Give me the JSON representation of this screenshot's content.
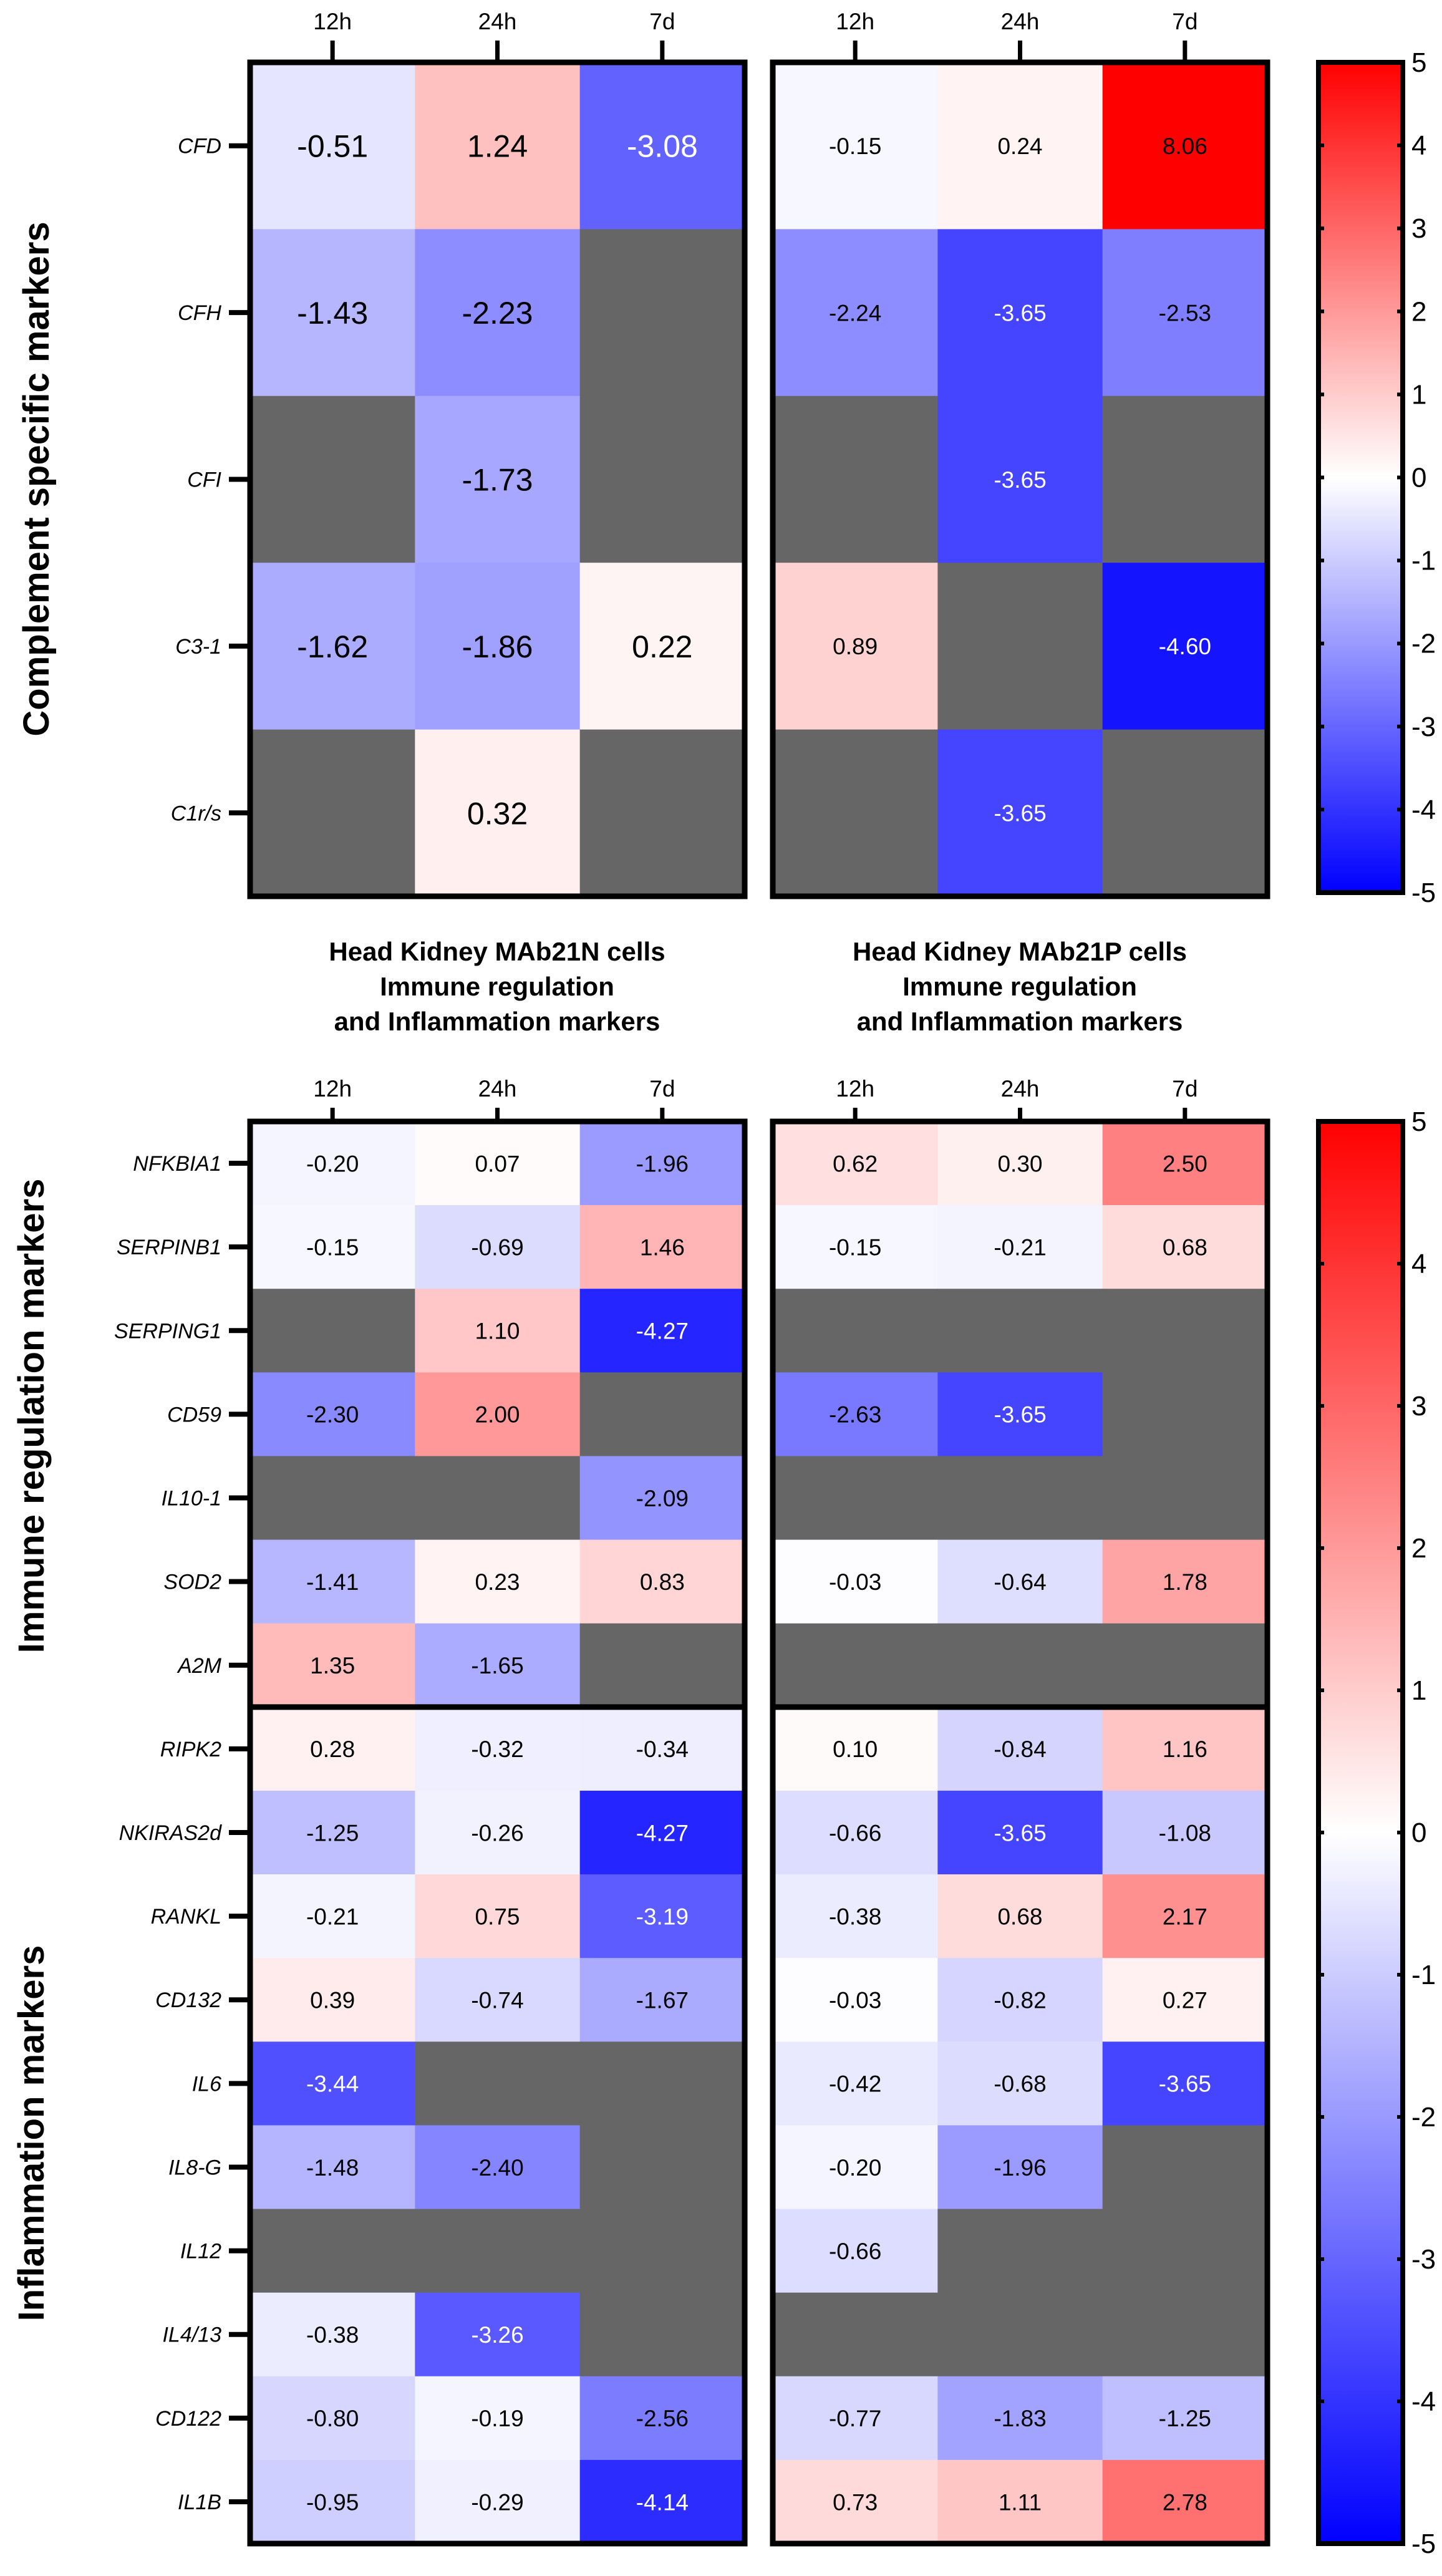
{
  "chart_data": [
    {
      "type": "heatmap",
      "panel": "complement-mab21n",
      "ylabel": "Complement specific markers",
      "columns": [
        "12h",
        "24h",
        "7d"
      ],
      "rows": [
        "CFD",
        "CFH",
        "CFI",
        "C3-1",
        "C1r/s"
      ],
      "values": [
        [
          -0.51,
          1.24,
          -3.08
        ],
        [
          -1.43,
          -2.23,
          null
        ],
        [
          null,
          -1.73,
          null
        ],
        [
          -1.62,
          -1.86,
          0.22
        ],
        [
          null,
          0.32,
          null
        ]
      ]
    },
    {
      "type": "heatmap",
      "panel": "complement-mab21p",
      "columns": [
        "12h",
        "24h",
        "7d"
      ],
      "rows": [
        "CFD",
        "CFH",
        "CFI",
        "C3-1",
        "C1r/s"
      ],
      "values": [
        [
          -0.15,
          0.24,
          8.06
        ],
        [
          -2.24,
          -3.65,
          -2.53
        ],
        [
          null,
          -3.65,
          null
        ],
        [
          0.89,
          null,
          -4.6
        ],
        [
          null,
          -3.65,
          null
        ]
      ]
    },
    {
      "type": "heatmap",
      "panel": "immune-inflammation-mab21n",
      "title": [
        "Head Kidney MAb21N cells",
        "Immune regulation",
        "and Inflammation markers"
      ],
      "group_labels": [
        "Immune regulation markers",
        "Inflammation markers"
      ],
      "columns": [
        "12h",
        "24h",
        "7d"
      ],
      "rows": [
        "NFKBIA1",
        "SERPINB1",
        "SERPING1",
        "CD59",
        "IL10-1",
        "SOD2",
        "A2M",
        "RIPK2",
        "NKIRAS2d",
        "RANKL",
        "CD132",
        "IL6",
        "IL8-G",
        "IL12",
        "IL4/13",
        "CD122",
        "IL1B"
      ],
      "values": [
        [
          -0.2,
          0.07,
          -1.96
        ],
        [
          -0.15,
          -0.69,
          1.46
        ],
        [
          null,
          1.1,
          -4.27
        ],
        [
          -2.3,
          2.0,
          null
        ],
        [
          null,
          null,
          -2.09
        ],
        [
          -1.41,
          0.23,
          0.83
        ],
        [
          1.35,
          -1.65,
          null
        ],
        [
          0.28,
          -0.32,
          -0.34
        ],
        [
          -1.25,
          -0.26,
          -4.27
        ],
        [
          -0.21,
          0.75,
          -3.19
        ],
        [
          0.39,
          -0.74,
          -1.67
        ],
        [
          -3.44,
          null,
          null
        ],
        [
          -1.48,
          -2.4,
          null
        ],
        [
          null,
          null,
          null
        ],
        [
          -0.38,
          -3.26,
          null
        ],
        [
          -0.8,
          -0.19,
          -2.56
        ],
        [
          -0.95,
          -0.29,
          -4.14
        ]
      ]
    },
    {
      "type": "heatmap",
      "panel": "immune-inflammation-mab21p",
      "title": [
        "Head Kidney MAb21P cells",
        "Immune regulation",
        "and Inflammation markers"
      ],
      "columns": [
        "12h",
        "24h",
        "7d"
      ],
      "rows": [
        "NFKBIA1",
        "SERPINB1",
        "SERPING1",
        "CD59",
        "IL10-1",
        "SOD2",
        "A2M",
        "RIPK2",
        "NKIRAS2d",
        "RANKL",
        "CD132",
        "IL6",
        "IL8-G",
        "IL12",
        "IL4/13",
        "CD122",
        "IL1B"
      ],
      "values": [
        [
          0.62,
          0.3,
          2.5
        ],
        [
          -0.15,
          -0.21,
          0.68
        ],
        [
          null,
          null,
          null
        ],
        [
          -2.63,
          -3.65,
          null
        ],
        [
          null,
          null,
          null
        ],
        [
          -0.03,
          -0.64,
          1.78
        ],
        [
          null,
          null,
          null
        ],
        [
          0.1,
          -0.84,
          1.16
        ],
        [
          -0.66,
          -3.65,
          -1.08
        ],
        [
          -0.38,
          0.68,
          2.17
        ],
        [
          -0.03,
          -0.82,
          0.27
        ],
        [
          -0.42,
          -0.68,
          -3.65
        ],
        [
          -0.2,
          -1.96,
          null
        ],
        [
          -0.66,
          null,
          null
        ],
        [
          null,
          null,
          null
        ],
        [
          -0.77,
          -1.83,
          -1.25
        ],
        [
          0.73,
          1.11,
          2.78
        ]
      ]
    }
  ],
  "colorscale": {
    "min": -5,
    "max": 5,
    "ticks": [
      "5",
      "4",
      "3",
      "2",
      "1",
      "0",
      "-1",
      "-2",
      "-3",
      "-4",
      "-5"
    ],
    "low_color": "#0000FF",
    "mid_color": "#FFFFFF",
    "high_color": "#FF0000",
    "missing_color": "#666666"
  }
}
